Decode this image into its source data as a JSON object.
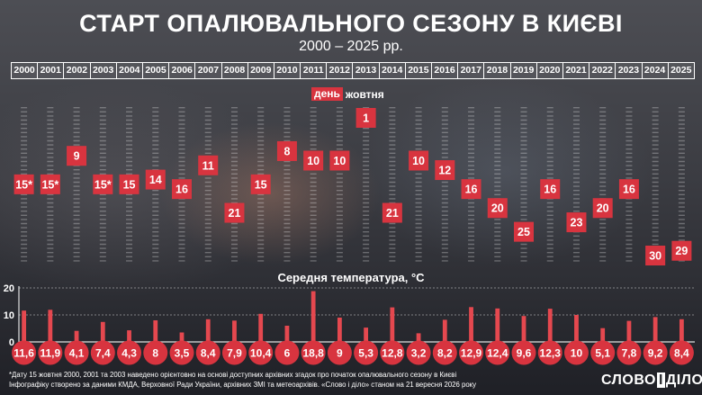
{
  "header": {
    "title": "СТАРТ ОПАЛЮВАЛЬНОГО СЕЗОНУ В КИЄВІ",
    "subtitle": "2000 – 2025 рр."
  },
  "legend": {
    "tag": "день",
    "text": "жовтня"
  },
  "temperature_title": "Середня температура, °C",
  "footnotes": [
    "*Дату 15 жовтня 2000, 2001 та 2003 наведено орієнтовно на основі доступних архівних згадок про початок опалювального сезону в Києві",
    "Інфографіку створено за даними КМДА, Верховної Ради України, архівних ЗМІ та метеоархівів. «Слово і діло» станом на 21 вересня 2026 року"
  ],
  "logo": {
    "left": "СЛОВО",
    "mid": "І",
    "right": "ДІЛО"
  },
  "colors": {
    "accent": "#d8343f",
    "temp_bar": "#e5484f",
    "temp_label": "#d8343f",
    "text": "#ffffff"
  },
  "chart_data": [
    {
      "type": "scatter",
      "x": [
        "2000",
        "2001",
        "2002",
        "2003",
        "2004",
        "2005",
        "2006",
        "2007",
        "2008",
        "2009",
        "2010",
        "2011",
        "2012",
        "2013",
        "2014",
        "2015",
        "2016",
        "2017",
        "2018",
        "2019",
        "2020",
        "2021",
        "2022",
        "2023",
        "2024",
        "2025"
      ],
      "values": [
        15,
        15,
        9,
        15,
        15,
        14,
        16,
        11,
        21,
        15,
        8,
        10,
        10,
        1,
        21,
        10,
        12,
        16,
        20,
        25,
        16,
        23,
        20,
        16,
        30,
        29
      ],
      "labels": [
        "15*",
        "15*",
        "9",
        "15*",
        "15",
        "14",
        "16",
        "11",
        "21",
        "15",
        "8",
        "10",
        "10",
        "1",
        "21",
        "10",
        "12",
        "16",
        "20",
        "25",
        "16",
        "23",
        "20",
        "16",
        "30",
        "29"
      ],
      "ylim": [
        0,
        31
      ],
      "y_inverted": true
    },
    {
      "type": "bar",
      "categories": [
        "2000",
        "2001",
        "2002",
        "2003",
        "2004",
        "2005",
        "2006",
        "2007",
        "2008",
        "2009",
        "2010",
        "2011",
        "2012",
        "2013",
        "2014",
        "2015",
        "2016",
        "2017",
        "2018",
        "2019",
        "2020",
        "2021",
        "2022",
        "2023",
        "2024",
        "2025"
      ],
      "values": [
        11.6,
        11.9,
        4.1,
        7.4,
        4.3,
        8,
        3.5,
        8.4,
        7.9,
        10.4,
        6,
        18.8,
        9,
        5.3,
        12.8,
        3.2,
        8.2,
        12.9,
        12.4,
        9.6,
        12.3,
        10,
        5.1,
        7.8,
        9.2,
        8.4
      ],
      "labels": [
        "11,6",
        "11,9",
        "4,1",
        "7,4",
        "4,3",
        "8",
        "3,5",
        "8,4",
        "7,9",
        "10,4",
        "6",
        "18,8",
        "9",
        "5,3",
        "12,8",
        "3,2",
        "8,2",
        "12,9",
        "12,4",
        "9,6",
        "12,3",
        "10",
        "5,1",
        "7,8",
        "9,2",
        "8,4"
      ],
      "yticks": [
        "0",
        "10",
        "20"
      ],
      "ylim": [
        0,
        20
      ],
      "ylabel": "Середня температура, °C"
    }
  ]
}
